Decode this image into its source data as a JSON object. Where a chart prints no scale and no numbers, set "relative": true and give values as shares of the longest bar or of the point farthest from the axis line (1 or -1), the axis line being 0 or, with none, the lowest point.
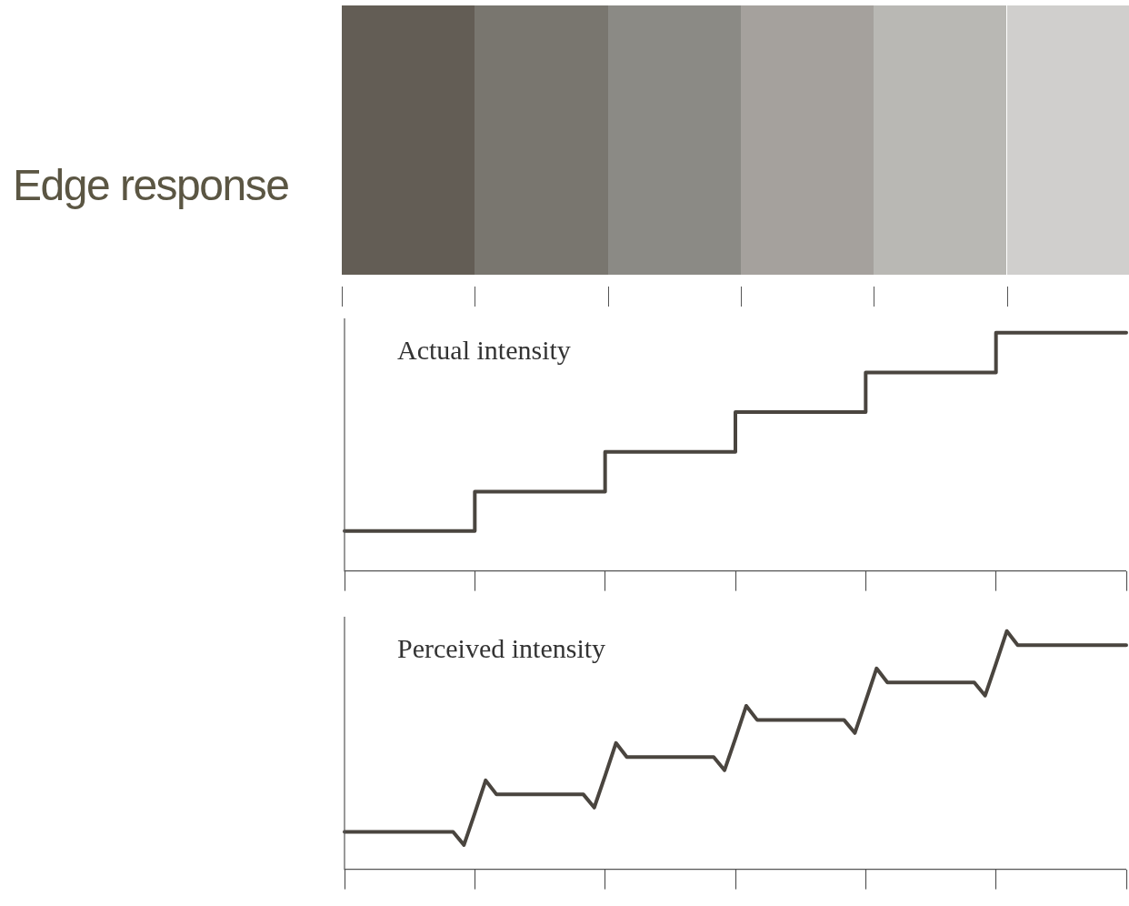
{
  "chart_data": [
    {
      "type": "step",
      "title": "Edge response",
      "annotations": [
        "Actual intensity"
      ],
      "relative": true,
      "categories": [
        null,
        null,
        null,
        null,
        null,
        null,
        null
      ],
      "grid": false,
      "legend": false,
      "series": [
        {
          "color": "#4a453f",
          "values": [
            0.167,
            0.333,
            0.5,
            0.667,
            0.833,
            1,
            1
          ]
        }
      ]
    },
    {
      "type": "line",
      "annotations": [
        "Perceived intensity"
      ],
      "relative": true,
      "categories": [
        null,
        null,
        null,
        null,
        null,
        null,
        null,
        null,
        null,
        null,
        null,
        null,
        null,
        null,
        null,
        null,
        null,
        null,
        null,
        null,
        null,
        null,
        null,
        null,
        null,
        null,
        null,
        null,
        null,
        null,
        null,
        null,
        null,
        null,
        null,
        null,
        null,
        null,
        null,
        null,
        null,
        null,
        null,
        null,
        null,
        null,
        null,
        null,
        null,
        null,
        null,
        null,
        null,
        null,
        null,
        null,
        null,
        null,
        null,
        null,
        null,
        null,
        null,
        null,
        null,
        null,
        null,
        null,
        null,
        null,
        null,
        null,
        null
      ],
      "grid": false,
      "legend": false,
      "marker": "none",
      "series": [
        {
          "color": "#4a453f",
          "values": [
            0.157,
            0.157,
            0.157,
            0.157,
            0.157,
            0.157,
            0.157,
            0.157,
            0.157,
            0.157,
            0.157,
            0.102,
            0.236,
            0.373,
            0.314,
            0.314,
            0.314,
            0.314,
            0.314,
            0.314,
            0.314,
            0.314,
            0.314,
            0.259,
            0.392,
            0.53,
            0.471,
            0.471,
            0.471,
            0.471,
            0.471,
            0.471,
            0.471,
            0.471,
            0.471,
            0.416,
            0.549,
            0.686,
            0.627,
            0.627,
            0.627,
            0.627,
            0.627,
            0.627,
            0.627,
            0.627,
            0.627,
            0.572,
            0.706,
            0.843,
            0.784,
            0.784,
            0.784,
            0.784,
            0.784,
            0.784,
            0.784,
            0.784,
            0.784,
            0.729,
            0.863,
            1,
            0.941,
            0.941,
            0.941,
            0.941,
            0.941,
            0.941,
            0.941,
            0.941,
            0.941,
            0.941,
            0.941
          ]
        }
      ]
    }
  ]
}
